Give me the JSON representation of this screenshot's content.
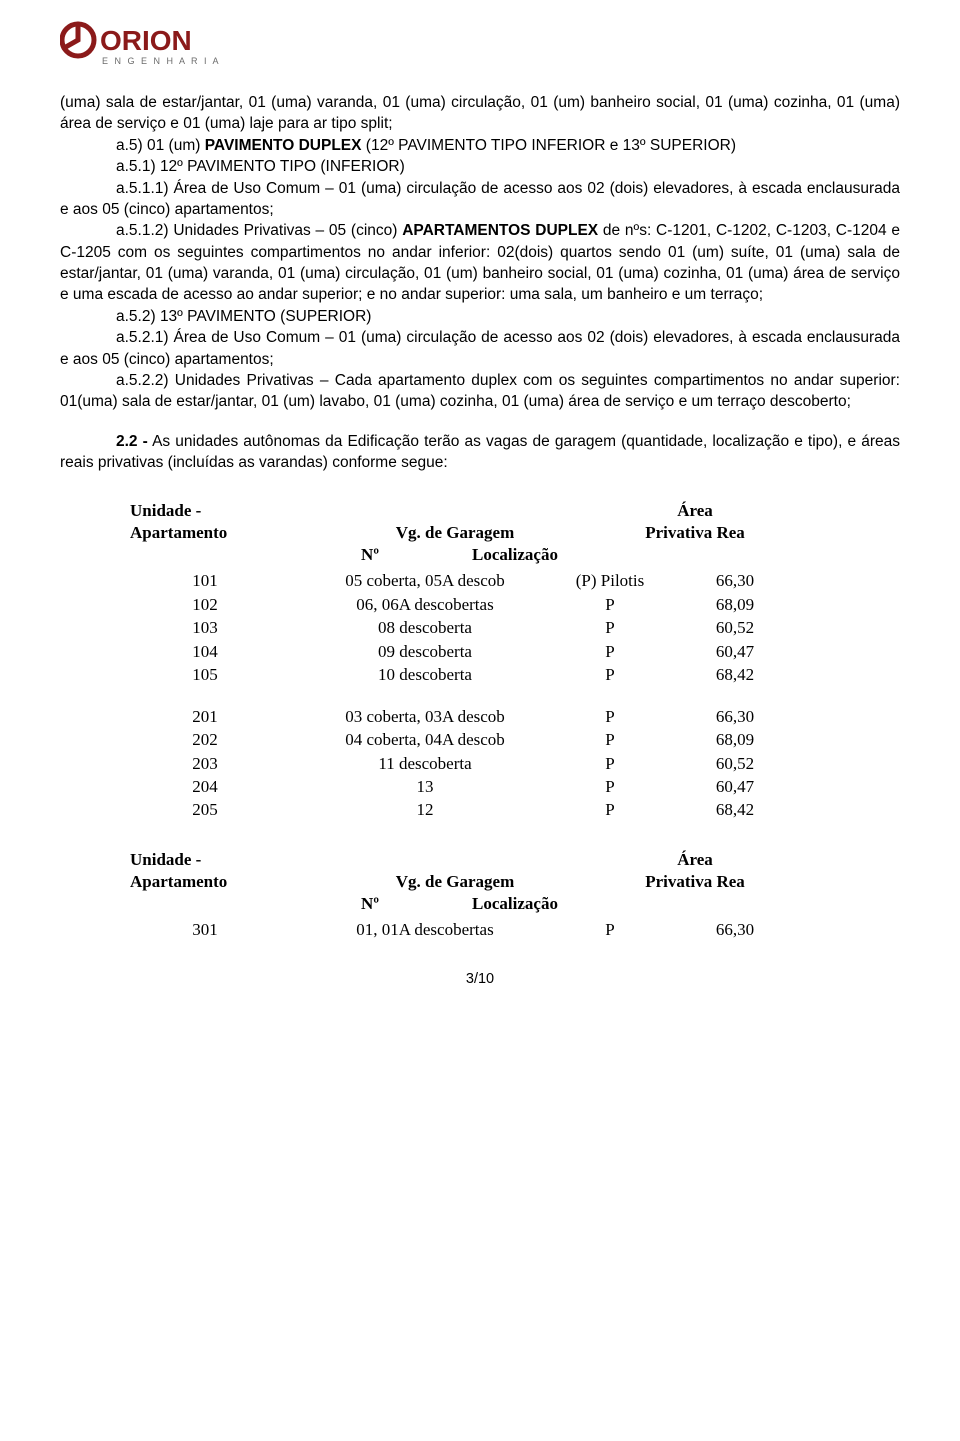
{
  "logo": {
    "brand": "ORION",
    "sub": "E N G E N H A R I A",
    "brand_color": "#8b1a1a",
    "sub_color": "#6b6b6b"
  },
  "para1": "(uma) sala de estar/jantar, 01 (uma) varanda, 01 (uma) circulação, 01 (um) banheiro social, 01 (uma) cozinha, 01 (uma) área de serviço e 01 (uma) laje para ar tipo split;",
  "para2_lead": "a.5) 01 (um) ",
  "para2_bold": "PAVIMENTO DUPLEX",
  "para2_rest": " (12º PAVIMENTO TIPO INFERIOR e 13º SUPERIOR)",
  "para3": "a.5.1) 12º PAVIMENTO TIPO (INFERIOR)",
  "para4": "a.5.1.1) Área de Uso Comum – 01 (uma) circulação de acesso aos 02 (dois) elevadores, à escada enclausurada e aos 05 (cinco) apartamentos;",
  "para5_lead": "a.5.1.2) Unidades Privativas – 05 (cinco) ",
  "para5_bold": "APARTAMENTOS DUPLEX",
  "para5_rest": " de nºs: C-1201, C-1202, C-1203, C-1204 e C-1205 com os seguintes compartimentos no andar inferior: 02(dois) quartos sendo 01 (um) suíte, 01 (uma) sala de estar/jantar, 01 (uma) varanda, 01 (uma) circulação, 01 (um) banheiro social, 01 (uma) cozinha, 01 (uma) área de serviço e uma escada de acesso ao andar superior; e no andar superior: uma sala, um banheiro e um terraço;",
  "para6": "a.5.2) 13º PAVIMENTO (SUPERIOR)",
  "para7": "a.5.2.1) Área de Uso Comum – 01 (uma) circulação de acesso aos 02 (dois) elevadores, à escada enclausurada e aos 05 (cinco) apartamentos;",
  "para8": "a.5.2.2) Unidades Privativas – Cada apartamento duplex com os seguintes compartimentos no andar superior: 01(uma) sala de estar/jantar, 01 (um) lavabo, 01 (uma) cozinha, 01 (uma) área de serviço e um terraço descoberto;",
  "para9_bold": "2.2 -",
  "para9_rest": " As unidades autônomas da Edificação terão as vagas de garagem (quantidade, localização e tipo), e  áreas reais privativas (incluídas as varandas) conforme segue:",
  "table": {
    "h_unit1": "Unidade -",
    "h_unit2": "Apartamento",
    "h_vg": "Vg. de Garagem",
    "h_area1": "Área",
    "h_area2": "Privativa Rea",
    "h_no": "Nº",
    "h_loc": "Localização",
    "groups": [
      {
        "header": true,
        "rows": [
          {
            "u": "101",
            "vg": "05 coberta, 05A descob",
            "loc": "(P) Pilotis",
            "a": "66,30"
          },
          {
            "u": "102",
            "vg": "06, 06A descobertas",
            "loc": "P",
            "a": "68,09"
          },
          {
            "u": "103",
            "vg": "08 descoberta",
            "loc": "P",
            "a": "60,52"
          },
          {
            "u": "104",
            "vg": "09 descoberta",
            "loc": "P",
            "a": "60,47"
          },
          {
            "u": "105",
            "vg": "10 descoberta",
            "loc": "P",
            "a": "68,42"
          }
        ]
      },
      {
        "header": false,
        "rows": [
          {
            "u": "201",
            "vg": "03 coberta, 03A descob",
            "loc": "P",
            "a": "66,30"
          },
          {
            "u": "202",
            "vg": "04 coberta, 04A descob",
            "loc": "P",
            "a": "68,09"
          },
          {
            "u": "203",
            "vg": "11 descoberta",
            "loc": "P",
            "a": "60,52"
          },
          {
            "u": "204",
            "vg": "13",
            "loc": "P",
            "a": "60,47"
          },
          {
            "u": "205",
            "vg": "12",
            "loc": "P",
            "a": "68,42"
          }
        ]
      },
      {
        "header": true,
        "rows": [
          {
            "u": "301",
            "vg": "01, 01A descobertas",
            "loc": "P",
            "a": "66,30"
          }
        ]
      }
    ]
  },
  "footer": "3/10"
}
